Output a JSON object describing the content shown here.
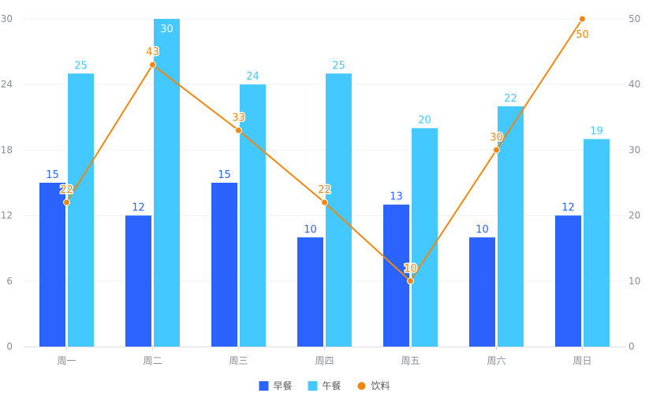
{
  "chart_data": {
    "type": "bar",
    "categories": [
      "周一",
      "周二",
      "周三",
      "周四",
      "周五",
      "周六",
      "周日"
    ],
    "series": [
      {
        "name": "早餐",
        "type": "bar",
        "axis": "left",
        "color": "#2b63ff",
        "values": [
          15,
          12,
          15,
          10,
          13,
          10,
          12
        ]
      },
      {
        "name": "午餐",
        "type": "bar",
        "axis": "left",
        "color": "#43c8ff",
        "values": [
          25,
          30,
          24,
          25,
          20,
          22,
          19
        ]
      },
      {
        "name": "饮料",
        "type": "line",
        "axis": "right",
        "color": "#f0870f",
        "values": [
          22,
          43,
          33,
          22,
          10,
          30,
          50
        ]
      }
    ],
    "y_left": {
      "min": 0,
      "max": 30,
      "ticks": [
        0,
        6,
        12,
        18,
        24,
        30
      ]
    },
    "y_right": {
      "min": 0,
      "max": 50,
      "ticks": [
        0,
        10,
        20,
        30,
        40,
        50
      ]
    },
    "grid": true,
    "legend_position": "bottom-center",
    "data_labels": true
  }
}
